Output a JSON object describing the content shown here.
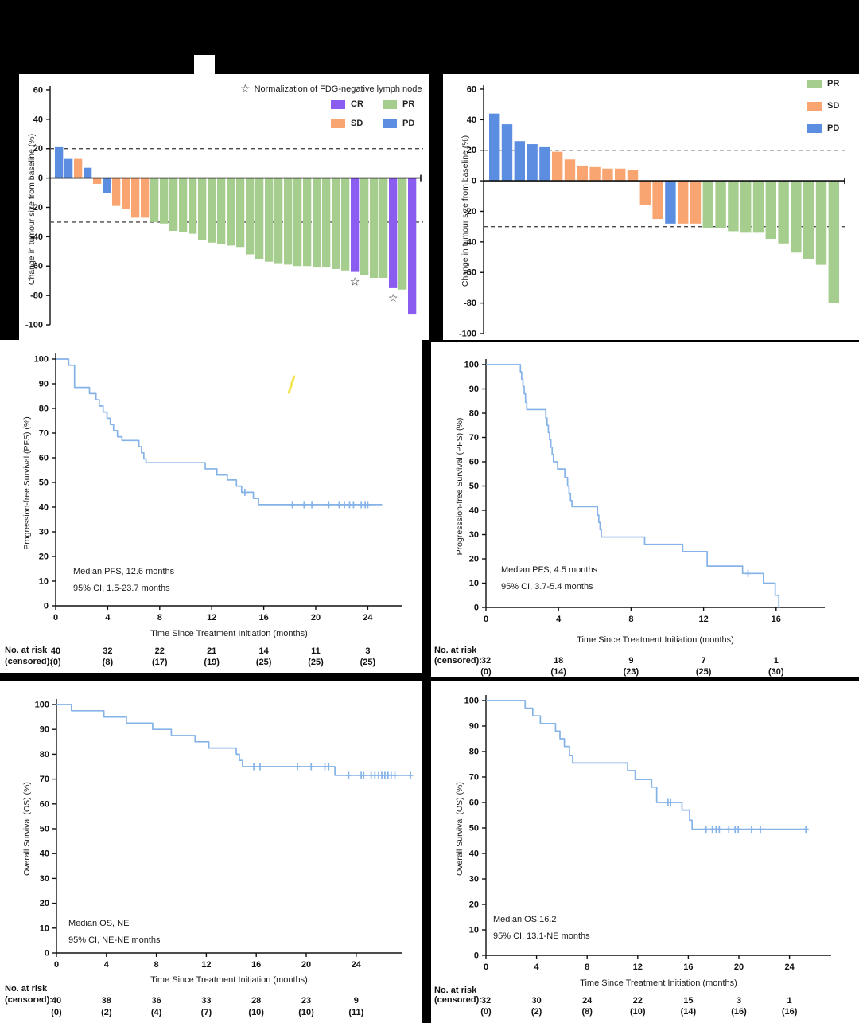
{
  "page": {
    "background": "#000000",
    "panel_background": "#ffffff"
  },
  "colors": {
    "cr": "#8a5cf0",
    "pr": "#a5cd8d",
    "sd": "#f9a572",
    "pd": "#5b8de0",
    "km_line": "#85b3e8",
    "axis": "#1a1a1a",
    "dashed": "#4a4a4a",
    "artifact_yellow": "#f1e23b"
  },
  "chart_data": [
    {
      "type": "bar",
      "name": "waterfall-a",
      "ylabel": "Change in tumour size from baseline (%)",
      "ylim": [
        -100,
        60
      ],
      "yticks": [
        60,
        40,
        20,
        0,
        -20,
        -40,
        -60,
        -80,
        -100
      ],
      "thresholds": [
        20,
        -30
      ],
      "star_glyph": "☆",
      "star_note": "Normalization of FDG-negative lymph node",
      "legend": [
        {
          "label": "CR",
          "color": "cr"
        },
        {
          "label": "PR",
          "color": "pr"
        },
        {
          "label": "SD",
          "color": "sd"
        },
        {
          "label": "PD",
          "color": "pd"
        }
      ],
      "values": [
        21,
        13,
        13,
        7,
        -4,
        -10,
        -19,
        -21,
        -27,
        -27,
        -30,
        -31,
        -36,
        -37,
        -38,
        -42,
        -44,
        -45,
        -46,
        -47,
        -52,
        -55,
        -57,
        -58,
        -59,
        -60,
        -60,
        -61,
        -61,
        -62,
        -63,
        -64,
        -66,
        -68,
        -68,
        -75,
        -76,
        -93
      ],
      "categories": [
        "pd",
        "pd",
        "sd",
        "pd",
        "sd",
        "pd",
        "sd",
        "sd",
        "sd",
        "sd",
        "pr",
        "pr",
        "pr",
        "pr",
        "pr",
        "pr",
        "pr",
        "pr",
        "pr",
        "pr",
        "pr",
        "pr",
        "pr",
        "pr",
        "pr",
        "pr",
        "pr",
        "pr",
        "pr",
        "pr",
        "pr",
        "cr",
        "pr",
        "pr",
        "pr",
        "cr",
        "pr",
        "cr"
      ],
      "star_indices": [
        31,
        35
      ]
    },
    {
      "type": "bar",
      "name": "waterfall-b",
      "ylabel": "Change in tumour size from baseline (%)",
      "ylim": [
        -100,
        60
      ],
      "yticks": [
        60,
        40,
        20,
        0,
        -20,
        -40,
        -60,
        -80,
        -100
      ],
      "thresholds": [
        20,
        -30
      ],
      "legend": [
        {
          "label": "PR",
          "color": "pr"
        },
        {
          "label": "SD",
          "color": "sd"
        },
        {
          "label": "PD",
          "color": "pd"
        }
      ],
      "values": [
        44,
        37,
        26,
        24,
        22,
        19,
        14,
        10,
        9,
        8,
        8,
        7,
        -16,
        -25,
        -28,
        -28,
        -28,
        -31,
        -31,
        -33,
        -34,
        -34,
        -38,
        -41,
        -47,
        -51,
        -55,
        -80
      ],
      "categories": [
        "pd",
        "pd",
        "pd",
        "pd",
        "pd",
        "sd",
        "sd",
        "sd",
        "sd",
        "sd",
        "sd",
        "sd",
        "sd",
        "sd",
        "pd",
        "sd",
        "sd",
        "pr",
        "pr",
        "pr",
        "pr",
        "pr",
        "pr",
        "pr",
        "pr",
        "pr",
        "pr",
        "pr"
      ],
      "star_indices": []
    },
    {
      "type": "line",
      "name": "pfs-a",
      "ylabel": "Progression-free Survival (PFS) (%)",
      "xlabel": "Time Since Treatment Initiation (months)",
      "yticks": [
        0,
        10,
        20,
        30,
        40,
        50,
        60,
        70,
        80,
        90,
        100
      ],
      "xticks": [
        0,
        4,
        8,
        12,
        16,
        20,
        24
      ],
      "annotation": [
        "Median PFS, 12.6 months",
        "95% CI, 1.5-23.7 months"
      ],
      "start": [
        0,
        100
      ],
      "points": [
        [
          1,
          97.5
        ],
        [
          1.45,
          88.5
        ],
        [
          2.6,
          86
        ],
        [
          3.1,
          83.5
        ],
        [
          3.35,
          81
        ],
        [
          3.65,
          78.5
        ],
        [
          3.95,
          76
        ],
        [
          4.2,
          73.5
        ],
        [
          4.45,
          71
        ],
        [
          4.75,
          68.5
        ],
        [
          5.1,
          67
        ],
        [
          6.4,
          64.5
        ],
        [
          6.6,
          62
        ],
        [
          6.78,
          59.5
        ],
        [
          6.95,
          58
        ],
        [
          11.5,
          55.5
        ],
        [
          12.4,
          53
        ],
        [
          13.2,
          51
        ],
        [
          13.9,
          48.5
        ],
        [
          14.3,
          46
        ],
        [
          15.2,
          43.5
        ],
        [
          15.6,
          41
        ]
      ],
      "end_t": 25.1,
      "censors": [
        [
          14.55,
          46
        ],
        [
          18.2,
          41
        ],
        [
          19.1,
          41
        ],
        [
          19.7,
          41
        ],
        [
          21.0,
          41
        ],
        [
          21.8,
          41
        ],
        [
          22.2,
          41
        ],
        [
          22.6,
          41
        ],
        [
          22.9,
          41
        ],
        [
          23.5,
          41
        ],
        [
          23.8,
          41
        ],
        [
          24.0,
          41
        ]
      ],
      "risk": {
        "label1": "No. at risk",
        "label2": "(censored):",
        "numbers_with_label1": true,
        "times": [
          0,
          4,
          8,
          12,
          16,
          20,
          24
        ],
        "n": [
          "40",
          "32",
          "22",
          "21",
          "14",
          "11",
          "3"
        ],
        "c": [
          "(0)",
          "(8)",
          "(17)",
          "(19)",
          "(25)",
          "(25)",
          "(25)"
        ]
      }
    },
    {
      "type": "line",
      "name": "pfs-b",
      "ylabel": "Progresssion-free Survival (PFS) (%)",
      "xlabel": "Time Since Treatment Initiation (months)",
      "yticks": [
        0,
        10,
        20,
        30,
        40,
        50,
        60,
        70,
        80,
        90,
        100
      ],
      "xticks": [
        0,
        4,
        8,
        12,
        16
      ],
      "annotation": [
        "Median PFS, 4.5 months",
        "95% CI, 3.7-5.4 months"
      ],
      "start": [
        0,
        100
      ],
      "points": [
        [
          1.9,
          97
        ],
        [
          1.97,
          94
        ],
        [
          2.04,
          91
        ],
        [
          2.11,
          88
        ],
        [
          2.18,
          84.5
        ],
        [
          2.25,
          81.5
        ],
        [
          3.3,
          78
        ],
        [
          3.37,
          75
        ],
        [
          3.44,
          72
        ],
        [
          3.51,
          69
        ],
        [
          3.58,
          66
        ],
        [
          3.65,
          63
        ],
        [
          3.72,
          60
        ],
        [
          3.95,
          57
        ],
        [
          4.35,
          53.5
        ],
        [
          4.5,
          50
        ],
        [
          4.58,
          47
        ],
        [
          4.66,
          44
        ],
        [
          4.74,
          41.5
        ],
        [
          6.15,
          38
        ],
        [
          6.22,
          35
        ],
        [
          6.29,
          32
        ],
        [
          6.36,
          29
        ],
        [
          8.75,
          26
        ],
        [
          10.85,
          23
        ],
        [
          12.2,
          17
        ],
        [
          14.15,
          14
        ],
        [
          15.3,
          10
        ],
        [
          15.95,
          5
        ],
        [
          16.15,
          0
        ]
      ],
      "end_t": 16.2,
      "censors": [
        [
          14.45,
          14
        ]
      ],
      "risk": {
        "label1": "No. at risk",
        "label2": "(censored):",
        "numbers_with_label1": false,
        "times": [
          0,
          4,
          8,
          12,
          16
        ],
        "n": [
          "32",
          "18",
          "9",
          "7",
          "1"
        ],
        "c": [
          "(0)",
          "(14)",
          "(23)",
          "(25)",
          "(30)"
        ]
      }
    },
    {
      "type": "line",
      "name": "os-a",
      "ylabel": "Overall Survival (OS) (%)",
      "xlabel": "Time Since Treatment Initiation (months)",
      "yticks": [
        0,
        10,
        20,
        30,
        40,
        50,
        60,
        70,
        80,
        90,
        100
      ],
      "xticks": [
        0,
        4,
        8,
        12,
        16,
        20,
        24
      ],
      "annotation": [
        "Median OS, NE",
        "95% CI, NE-NE months"
      ],
      "start": [
        0,
        100
      ],
      "points": [
        [
          1.2,
          97.5
        ],
        [
          3.8,
          95
        ],
        [
          5.6,
          92.5
        ],
        [
          7.7,
          90
        ],
        [
          9.2,
          87.5
        ],
        [
          11.1,
          85
        ],
        [
          12.2,
          82.5
        ],
        [
          14.4,
          80
        ],
        [
          14.65,
          77.5
        ],
        [
          14.9,
          75
        ],
        [
          22.3,
          71.5
        ]
      ],
      "end_t": 28.4,
      "censors": [
        [
          15.8,
          75
        ],
        [
          16.3,
          75
        ],
        [
          19.3,
          75
        ],
        [
          20.4,
          75
        ],
        [
          21.5,
          75
        ],
        [
          21.8,
          75
        ],
        [
          23.4,
          71.5
        ],
        [
          24.4,
          71.5
        ],
        [
          24.6,
          71.5
        ],
        [
          25.2,
          71.5
        ],
        [
          25.5,
          71.5
        ],
        [
          25.8,
          71.5
        ],
        [
          26.05,
          71.5
        ],
        [
          26.3,
          71.5
        ],
        [
          26.55,
          71.5
        ],
        [
          26.8,
          71.5
        ],
        [
          27.1,
          71.5
        ],
        [
          28.35,
          71.5
        ]
      ],
      "risk": {
        "label1": "No. at risk",
        "label2": "(censored):",
        "numbers_with_label1": false,
        "times": [
          0,
          4,
          8,
          12,
          16,
          20,
          24
        ],
        "n": [
          "40",
          "38",
          "36",
          "33",
          "28",
          "23",
          "9"
        ],
        "c": [
          "(0)",
          "(2)",
          "(4)",
          "(7)",
          "(10)",
          "(10)",
          "(11)"
        ]
      }
    },
    {
      "type": "line",
      "name": "os-b",
      "ylabel": "Overall Survival (OS) (%)",
      "xlabel": "Time Since Treatment Initiation (months)",
      "yticks": [
        0,
        10,
        20,
        30,
        40,
        50,
        60,
        70,
        80,
        90,
        100
      ],
      "xticks": [
        0,
        4,
        8,
        12,
        16,
        20,
        24
      ],
      "annotation": [
        "Median OS,16.2",
        "95% CI, 13.1-NE months"
      ],
      "start": [
        0,
        100
      ],
      "points": [
        [
          3.1,
          97
        ],
        [
          3.7,
          94
        ],
        [
          4.3,
          91
        ],
        [
          5.5,
          88
        ],
        [
          5.85,
          85
        ],
        [
          6.2,
          82
        ],
        [
          6.6,
          78.5
        ],
        [
          6.85,
          75.5
        ],
        [
          11.2,
          72.5
        ],
        [
          11.8,
          69
        ],
        [
          13.1,
          66
        ],
        [
          13.5,
          60
        ],
        [
          15.5,
          57
        ],
        [
          16.1,
          53
        ],
        [
          16.3,
          49.5
        ]
      ],
      "end_t": 25.35,
      "censors": [
        [
          14.4,
          60
        ],
        [
          14.6,
          60
        ],
        [
          17.4,
          49.5
        ],
        [
          17.9,
          49.5
        ],
        [
          18.2,
          49.5
        ],
        [
          18.45,
          49.5
        ],
        [
          19.2,
          49.5
        ],
        [
          19.7,
          49.5
        ],
        [
          19.95,
          49.5
        ],
        [
          21.0,
          49.5
        ],
        [
          21.7,
          49.5
        ],
        [
          25.3,
          49.5
        ]
      ],
      "risk": {
        "label1": "No. at risk",
        "label2": "(censored):",
        "numbers_with_label1": false,
        "times": [
          0,
          4,
          8,
          12,
          16,
          20,
          24
        ],
        "n": [
          "32",
          "30",
          "24",
          "22",
          "15",
          "3",
          "1"
        ],
        "c": [
          "(0)",
          "(2)",
          "(8)",
          "(10)",
          "(14)",
          "(16)",
          "(16)"
        ]
      }
    }
  ]
}
